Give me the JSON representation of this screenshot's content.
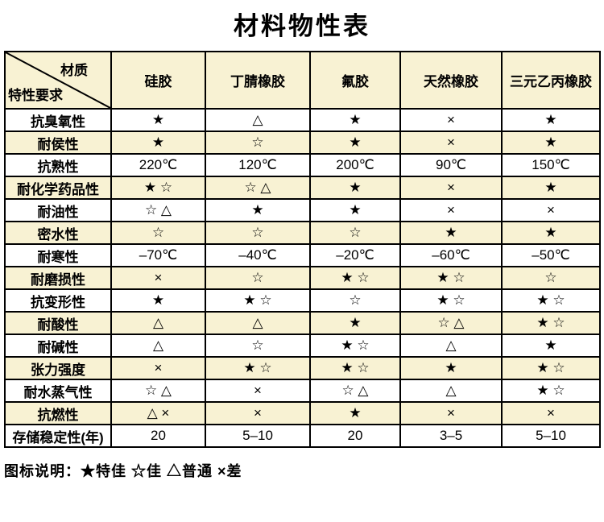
{
  "chart_data": {
    "type": "table",
    "title": "材料物性表",
    "corner": {
      "top_right": "材质",
      "bottom_left": "特性要求"
    },
    "columns": [
      "硅胶",
      "丁腈橡胶",
      "氟胶",
      "天然橡胶",
      "三元乙丙橡胶"
    ],
    "rows": [
      {
        "label": "抗臭氧性",
        "values": [
          "★",
          "△",
          "★",
          "×",
          "★"
        ]
      },
      {
        "label": "耐侯性",
        "values": [
          "★",
          "☆",
          "★",
          "×",
          "★"
        ]
      },
      {
        "label": "抗熟性",
        "values": [
          "220℃",
          "120℃",
          "200℃",
          "90℃",
          "150℃"
        ]
      },
      {
        "label": "耐化学药品性",
        "values": [
          "★ ☆",
          "☆ △",
          "★",
          "×",
          "★"
        ]
      },
      {
        "label": "耐油性",
        "values": [
          "☆ △",
          "★",
          "★",
          "×",
          "×"
        ]
      },
      {
        "label": "密水性",
        "values": [
          "☆",
          "☆",
          "☆",
          "★",
          "★"
        ]
      },
      {
        "label": "耐寒性",
        "values": [
          "–70℃",
          "–40℃",
          "–20℃",
          "–60℃",
          "–50℃"
        ]
      },
      {
        "label": "耐磨损性",
        "values": [
          "×",
          "☆",
          "★ ☆",
          "★ ☆",
          "☆"
        ]
      },
      {
        "label": "抗变形性",
        "values": [
          "★",
          "★ ☆",
          "☆",
          "★ ☆",
          "★ ☆"
        ]
      },
      {
        "label": "耐酸性",
        "values": [
          "△",
          "△",
          "★",
          "☆ △",
          "★ ☆"
        ]
      },
      {
        "label": "耐碱性",
        "values": [
          "△",
          "☆",
          "★ ☆",
          "△",
          "★"
        ]
      },
      {
        "label": "张力强度",
        "values": [
          "×",
          "★ ☆",
          "★ ☆",
          "★",
          "★ ☆"
        ]
      },
      {
        "label": "耐水蒸气性",
        "values": [
          "☆ △",
          "×",
          "☆ △",
          "△",
          "★ ☆"
        ]
      },
      {
        "label": "抗燃性",
        "values": [
          "△ ×",
          "×",
          "★",
          "×",
          "×"
        ]
      },
      {
        "label": "存储稳定性(年)",
        "values": [
          "20",
          "5–10",
          "20",
          "3–5",
          "5–10"
        ]
      }
    ],
    "legend": "图标说明：★特佳 ☆佳 △普通 ×差",
    "legend_symbols": [
      {
        "symbol": "★",
        "meaning": "特佳"
      },
      {
        "symbol": "☆",
        "meaning": "佳"
      },
      {
        "symbol": "△",
        "meaning": "普通"
      },
      {
        "symbol": "×",
        "meaning": "差"
      }
    ],
    "colors": {
      "row_band": "#f8f2d3",
      "border": "#000000",
      "background": "#ffffff",
      "text": "#000000"
    },
    "layout": {
      "grid": "on",
      "banding": "even-rows-cream",
      "legend_position": "bottom-left"
    }
  }
}
